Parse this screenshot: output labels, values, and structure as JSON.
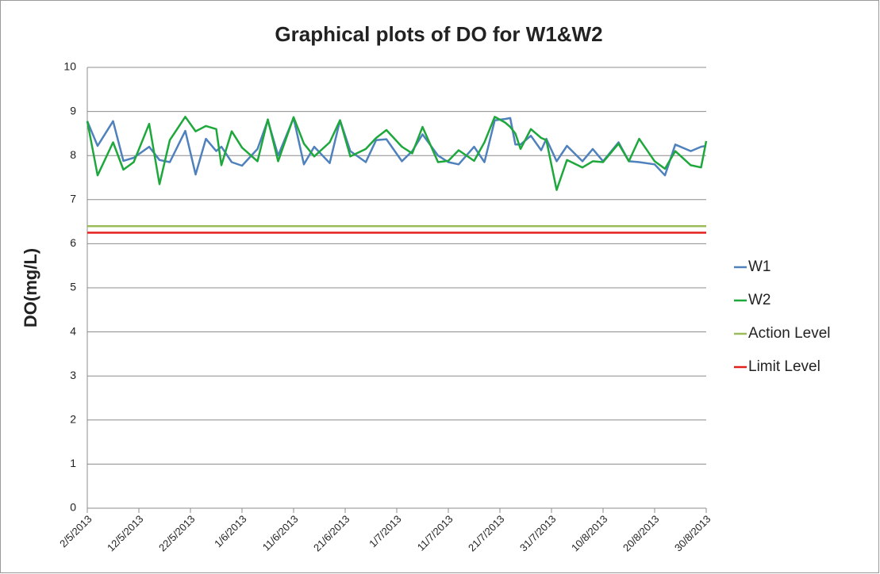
{
  "chart_data": {
    "type": "line",
    "title": "Graphical plots of DO for W1&W2",
    "y_label": "DO(mg/L)",
    "x": [
      "2/5/2013",
      "4/5/2013",
      "7/5/2013",
      "9/5/2013",
      "11/5/2013",
      "14/5/2013",
      "16/5/2013",
      "18/5/2013",
      "21/5/2013",
      "23/5/2013",
      "25/5/2013",
      "27/5/2013",
      "28/5/2013",
      "30/5/2013",
      "1/6/2013",
      "4/6/2013",
      "6/6/2013",
      "8/6/2013",
      "11/6/2013",
      "13/6/2013",
      "15/6/2013",
      "18/6/2013",
      "20/6/2013",
      "22/6/2013",
      "25/6/2013",
      "27/6/2013",
      "29/6/2013",
      "2/7/2013",
      "4/7/2013",
      "6/7/2013",
      "9/7/2013",
      "11/7/2013",
      "13/7/2013",
      "16/7/2013",
      "18/7/2013",
      "20/7/2013",
      "22/7/2013",
      "23/7/2013",
      "24/7/2013",
      "25/7/2013",
      "27/7/2013",
      "29/7/2013",
      "30/7/2013",
      "1/8/2013",
      "3/8/2013",
      "6/8/2013",
      "8/8/2013",
      "10/8/2013",
      "13/8/2013",
      "15/8/2013",
      "17/8/2013",
      "20/8/2013",
      "22/8/2013",
      "24/8/2013",
      "27/8/2013",
      "29/8/2013",
      "30/8/2013"
    ],
    "series": [
      {
        "name": "W1",
        "color": "#4f81bd",
        "values": [
          8.78,
          8.22,
          8.78,
          7.88,
          7.95,
          8.2,
          7.9,
          7.85,
          8.56,
          7.57,
          8.38,
          8.1,
          8.2,
          7.85,
          7.77,
          8.15,
          8.8,
          8.0,
          8.85,
          7.8,
          8.2,
          7.83,
          8.8,
          8.1,
          7.85,
          8.35,
          8.37,
          7.87,
          8.1,
          8.48,
          8.0,
          7.85,
          7.8,
          8.2,
          7.85,
          8.8,
          8.83,
          8.85,
          8.25,
          8.25,
          8.45,
          8.12,
          8.38,
          7.87,
          8.22,
          7.87,
          8.15,
          7.87,
          8.3,
          7.87,
          7.85,
          7.8,
          7.55,
          8.25,
          8.1,
          8.2,
          8.22
        ]
      },
      {
        "name": "W2",
        "color": "#1ea83c",
        "values": [
          8.78,
          7.55,
          8.3,
          7.68,
          7.85,
          8.72,
          7.35,
          8.35,
          8.88,
          8.55,
          8.67,
          8.6,
          7.78,
          8.55,
          8.18,
          7.87,
          8.82,
          7.87,
          8.87,
          8.27,
          7.98,
          8.3,
          8.8,
          7.98,
          8.15,
          8.4,
          8.58,
          8.2,
          8.05,
          8.65,
          7.85,
          7.88,
          8.12,
          7.88,
          8.3,
          8.88,
          8.75,
          8.65,
          8.5,
          8.15,
          8.6,
          8.4,
          8.35,
          7.22,
          7.9,
          7.73,
          7.87,
          7.85,
          8.27,
          7.87,
          8.38,
          7.87,
          7.7,
          8.1,
          7.78,
          7.73,
          8.33
        ]
      },
      {
        "name": "Action Level",
        "color": "#9bbb59",
        "values": [
          6.4,
          6.4,
          6.4,
          6.4,
          6.4,
          6.4,
          6.4,
          6.4,
          6.4,
          6.4,
          6.4,
          6.4,
          6.4,
          6.4,
          6.4,
          6.4,
          6.4,
          6.4,
          6.4,
          6.4,
          6.4,
          6.4,
          6.4,
          6.4,
          6.4,
          6.4,
          6.4,
          6.4,
          6.4,
          6.4,
          6.4,
          6.4,
          6.4,
          6.4,
          6.4,
          6.4,
          6.4,
          6.4,
          6.4,
          6.4,
          6.4,
          6.4,
          6.4,
          6.4,
          6.4,
          6.4,
          6.4,
          6.4,
          6.4,
          6.4,
          6.4,
          6.4,
          6.4,
          6.4,
          6.4,
          6.4,
          6.4
        ]
      },
      {
        "name": "Limit Level",
        "color": "#e3201b",
        "values": [
          6.25,
          6.25,
          6.25,
          6.25,
          6.25,
          6.25,
          6.25,
          6.25,
          6.25,
          6.25,
          6.25,
          6.25,
          6.25,
          6.25,
          6.25,
          6.25,
          6.25,
          6.25,
          6.25,
          6.25,
          6.25,
          6.25,
          6.25,
          6.25,
          6.25,
          6.25,
          6.25,
          6.25,
          6.25,
          6.25,
          6.25,
          6.25,
          6.25,
          6.25,
          6.25,
          6.25,
          6.25,
          6.25,
          6.25,
          6.25,
          6.25,
          6.25,
          6.25,
          6.25,
          6.25,
          6.25,
          6.25,
          6.25,
          6.25,
          6.25,
          6.25,
          6.25,
          6.25,
          6.25,
          6.25,
          6.25,
          6.25
        ]
      }
    ],
    "xlim": [
      "2/5/2013",
      "30/8/2013"
    ],
    "xticks": [
      "2/5/2013",
      "12/5/2013",
      "22/5/2013",
      "1/6/2013",
      "11/6/2013",
      "21/6/2013",
      "1/7/2013",
      "11/7/2013",
      "21/7/2013",
      "31/7/2013",
      "10/8/2013",
      "20/8/2013",
      "30/8/2013"
    ],
    "ylim": [
      0,
      10
    ],
    "yticks": [
      0,
      1,
      2,
      3,
      4,
      5,
      6,
      7,
      8,
      9,
      10
    ],
    "grid": true,
    "legend": "right"
  }
}
